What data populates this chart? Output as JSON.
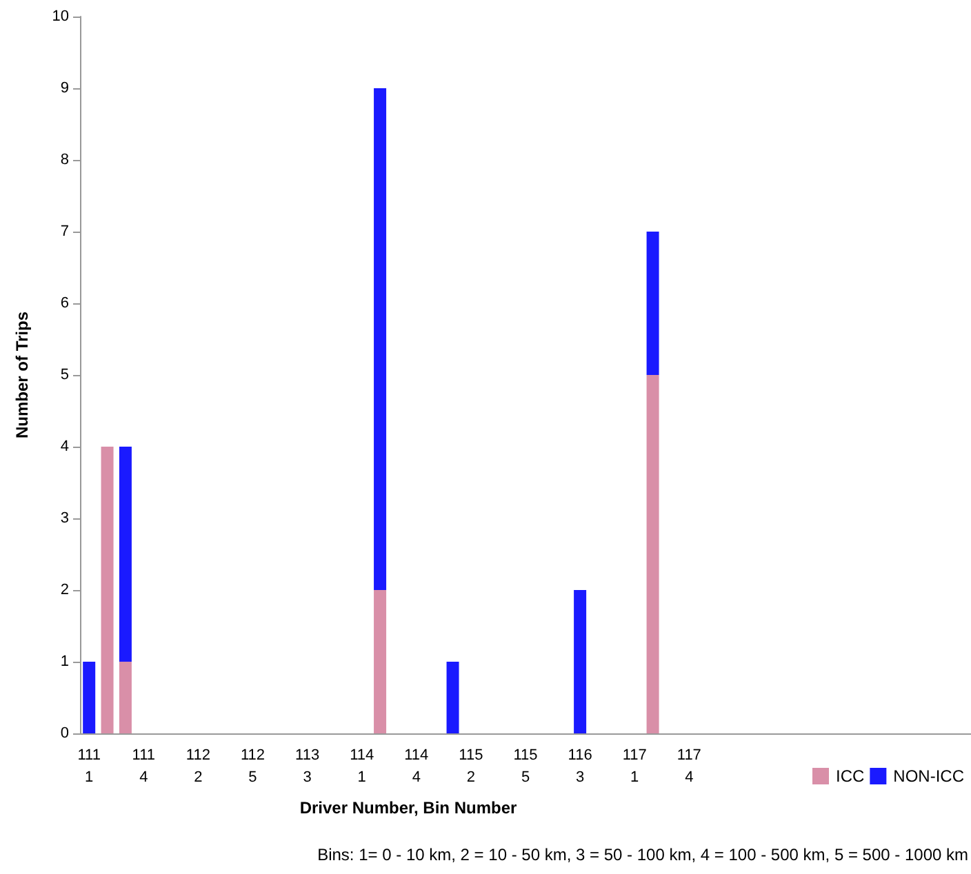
{
  "chart_data": {
    "type": "bar",
    "stacked": true,
    "xlabel": "Driver Number, Bin Number",
    "ylabel": "Number of Trips",
    "categories": [
      "111\n1",
      null,
      null,
      "111\n4",
      null,
      null,
      "112\n2",
      null,
      null,
      "112\n5",
      null,
      null,
      "113\n3",
      null,
      null,
      "114\n1",
      null,
      null,
      "114\n4",
      null,
      null,
      "115\n2",
      null,
      null,
      "115\n5",
      null,
      null,
      "116\n3",
      null,
      null,
      "117\n1",
      null,
      null,
      "117\n4",
      null,
      null,
      null,
      null,
      null,
      null,
      null,
      null,
      null,
      null,
      null,
      null,
      null,
      null,
      null
    ],
    "series": [
      {
        "name": "ICC",
        "color": "#d98fa8",
        "values": [
          null,
          4,
          1,
          null,
          null,
          null,
          null,
          null,
          null,
          null,
          null,
          null,
          null,
          null,
          null,
          null,
          2,
          null,
          null,
          null,
          null,
          null,
          null,
          null,
          null,
          null,
          null,
          null,
          null,
          null,
          null,
          5,
          null,
          null,
          null,
          null,
          null,
          null,
          null,
          null,
          null,
          null,
          null,
          null,
          null,
          null,
          null,
          null,
          null
        ]
      },
      {
        "name": "NON-ICC",
        "color": "#1a1aff",
        "values": [
          1,
          null,
          3,
          null,
          null,
          null,
          null,
          null,
          null,
          null,
          null,
          null,
          null,
          null,
          null,
          null,
          7,
          null,
          null,
          null,
          1,
          null,
          null,
          null,
          null,
          null,
          null,
          2,
          null,
          null,
          null,
          2,
          null,
          null,
          null,
          null,
          null,
          null,
          null,
          null,
          null,
          null,
          null,
          null,
          null,
          null,
          null,
          null,
          null
        ]
      }
    ],
    "ylim": [
      0,
      10
    ],
    "yticks": [
      0,
      1,
      2,
      3,
      4,
      5,
      6,
      7,
      8,
      9,
      10
    ],
    "grid": false,
    "legend": "bottom right",
    "annotations": [
      "Bins: 1= 0 - 10 km, 2 = 10 - 50 km, 3 = 50 - 100 km, 4 = 100 - 500 km, 5 = 500 - 1000 km"
    ]
  }
}
